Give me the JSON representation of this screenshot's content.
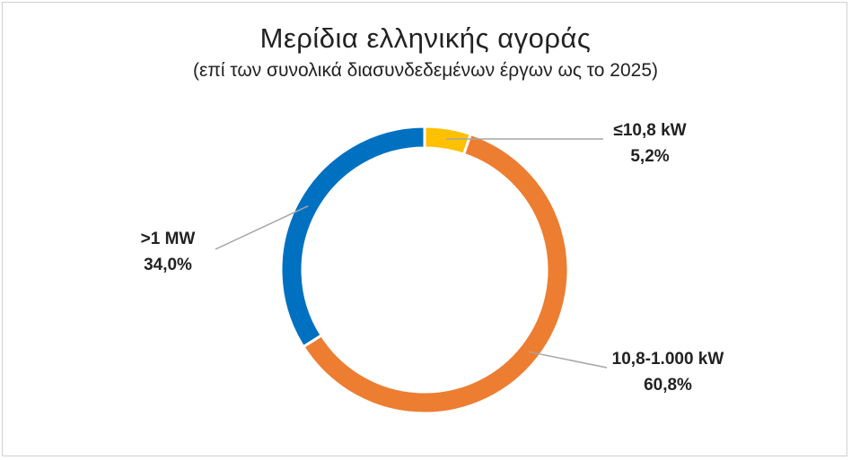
{
  "chart_data": {
    "type": "pie",
    "variant": "donut",
    "title": "Μερίδια ελληνικής αγοράς",
    "subtitle": "(επί των συνολικά διασυνδεδεμένων έργων ως το 2025)",
    "slices": [
      {
        "label": "≤10,8 kW",
        "value": 5.2,
        "value_label": "5,2%",
        "color": "#FFC000"
      },
      {
        "label": "10,8-1.000 kW",
        "value": 60.8,
        "value_label": "60,8%",
        "color": "#ED7D31"
      },
      {
        "label": ">1 MW",
        "value": 34.0,
        "value_label": "34,0%",
        "color": "#0070C0"
      }
    ],
    "legend": "none",
    "start_angle": "12 o'clock",
    "direction": "clockwise"
  }
}
